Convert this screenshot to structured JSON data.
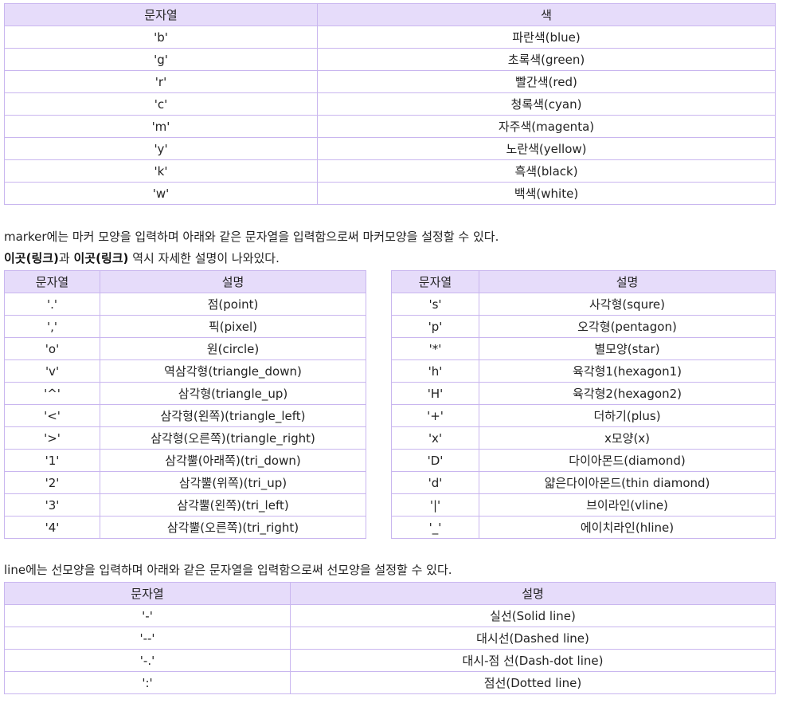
{
  "color_table": {
    "headers": [
      "문자열",
      "색"
    ],
    "rows": [
      [
        "'b'",
        "파란색(blue)"
      ],
      [
        "'g'",
        "초록색(green)"
      ],
      [
        "'r'",
        "빨간색(red)"
      ],
      [
        "'c'",
        "청록색(cyan)"
      ],
      [
        "'m'",
        "자주색(magenta)"
      ],
      [
        "'y'",
        "노란색(yellow)"
      ],
      [
        "'k'",
        "흑색(black)"
      ],
      [
        "'w'",
        "백색(white)"
      ]
    ]
  },
  "marker_intro": "marker에는 마커 모양을 입력하며 아래와 같은 문자열을 입력함으로써 마커모양을 설정할 수 있다.",
  "marker_links": {
    "link1": "이곳(링크)",
    "conj": "과 ",
    "link2": "이곳(링크)",
    "tail": " 역시 자세한 설명이 나와있다."
  },
  "marker_table_left": {
    "headers": [
      "문자열",
      "설명"
    ],
    "rows": [
      [
        "'.'",
        "점(point)"
      ],
      [
        "','",
        "픽(pixel)"
      ],
      [
        "'o'",
        "원(circle)"
      ],
      [
        "'v'",
        "역삼각형(triangle_down)"
      ],
      [
        "'^'",
        "삼각형(triangle_up)"
      ],
      [
        "'<'",
        "삼각형(왼쪽)(triangle_left)"
      ],
      [
        "'>'",
        "삼각형(오른쪽)(triangle_right)"
      ],
      [
        "'1'",
        "삼각뿔(아래쪽)(tri_down)"
      ],
      [
        "'2'",
        "삼각뿔(위쪽)(tri_up)"
      ],
      [
        "'3'",
        "삼각뿔(왼쪽)(tri_left)"
      ],
      [
        "'4'",
        "삼각뿔(오른쪽)(tri_right)"
      ]
    ]
  },
  "marker_table_right": {
    "headers": [
      "문자열",
      "설명"
    ],
    "rows": [
      [
        "'s'",
        "사각형(squre)"
      ],
      [
        "'p'",
        "오각형(pentagon)"
      ],
      [
        "'*'",
        "별모양(star)"
      ],
      [
        "'h'",
        "육각형1(hexagon1)"
      ],
      [
        "'H'",
        "육각형2(hexagon2)"
      ],
      [
        "'+'",
        "더하기(plus)"
      ],
      [
        "'x'",
        "x모양(x)"
      ],
      [
        "'D'",
        "다이아몬드(diamond)"
      ],
      [
        "'d'",
        "얇은다이아몬드(thin diamond)"
      ],
      [
        "'|'",
        "브이라인(vline)"
      ],
      [
        "'_'",
        "에이치라인(hline)"
      ]
    ]
  },
  "line_intro": "line에는 선모양을 입력하며 아래와 같은 문자열을 입력함으로써 선모양을 설정할 수 있다.",
  "line_table": {
    "headers": [
      "문자열",
      "설명"
    ],
    "rows": [
      [
        "'-'",
        "실선(Solid line)"
      ],
      [
        "'--'",
        "대시선(Dashed line)"
      ],
      [
        "'-.'",
        "대시-점 선(Dash-dot line)"
      ],
      [
        "':'",
        "점선(Dotted line)"
      ]
    ]
  },
  "colors": {
    "header_bg": "#e6dcfa",
    "border": "#c9b6ef"
  }
}
